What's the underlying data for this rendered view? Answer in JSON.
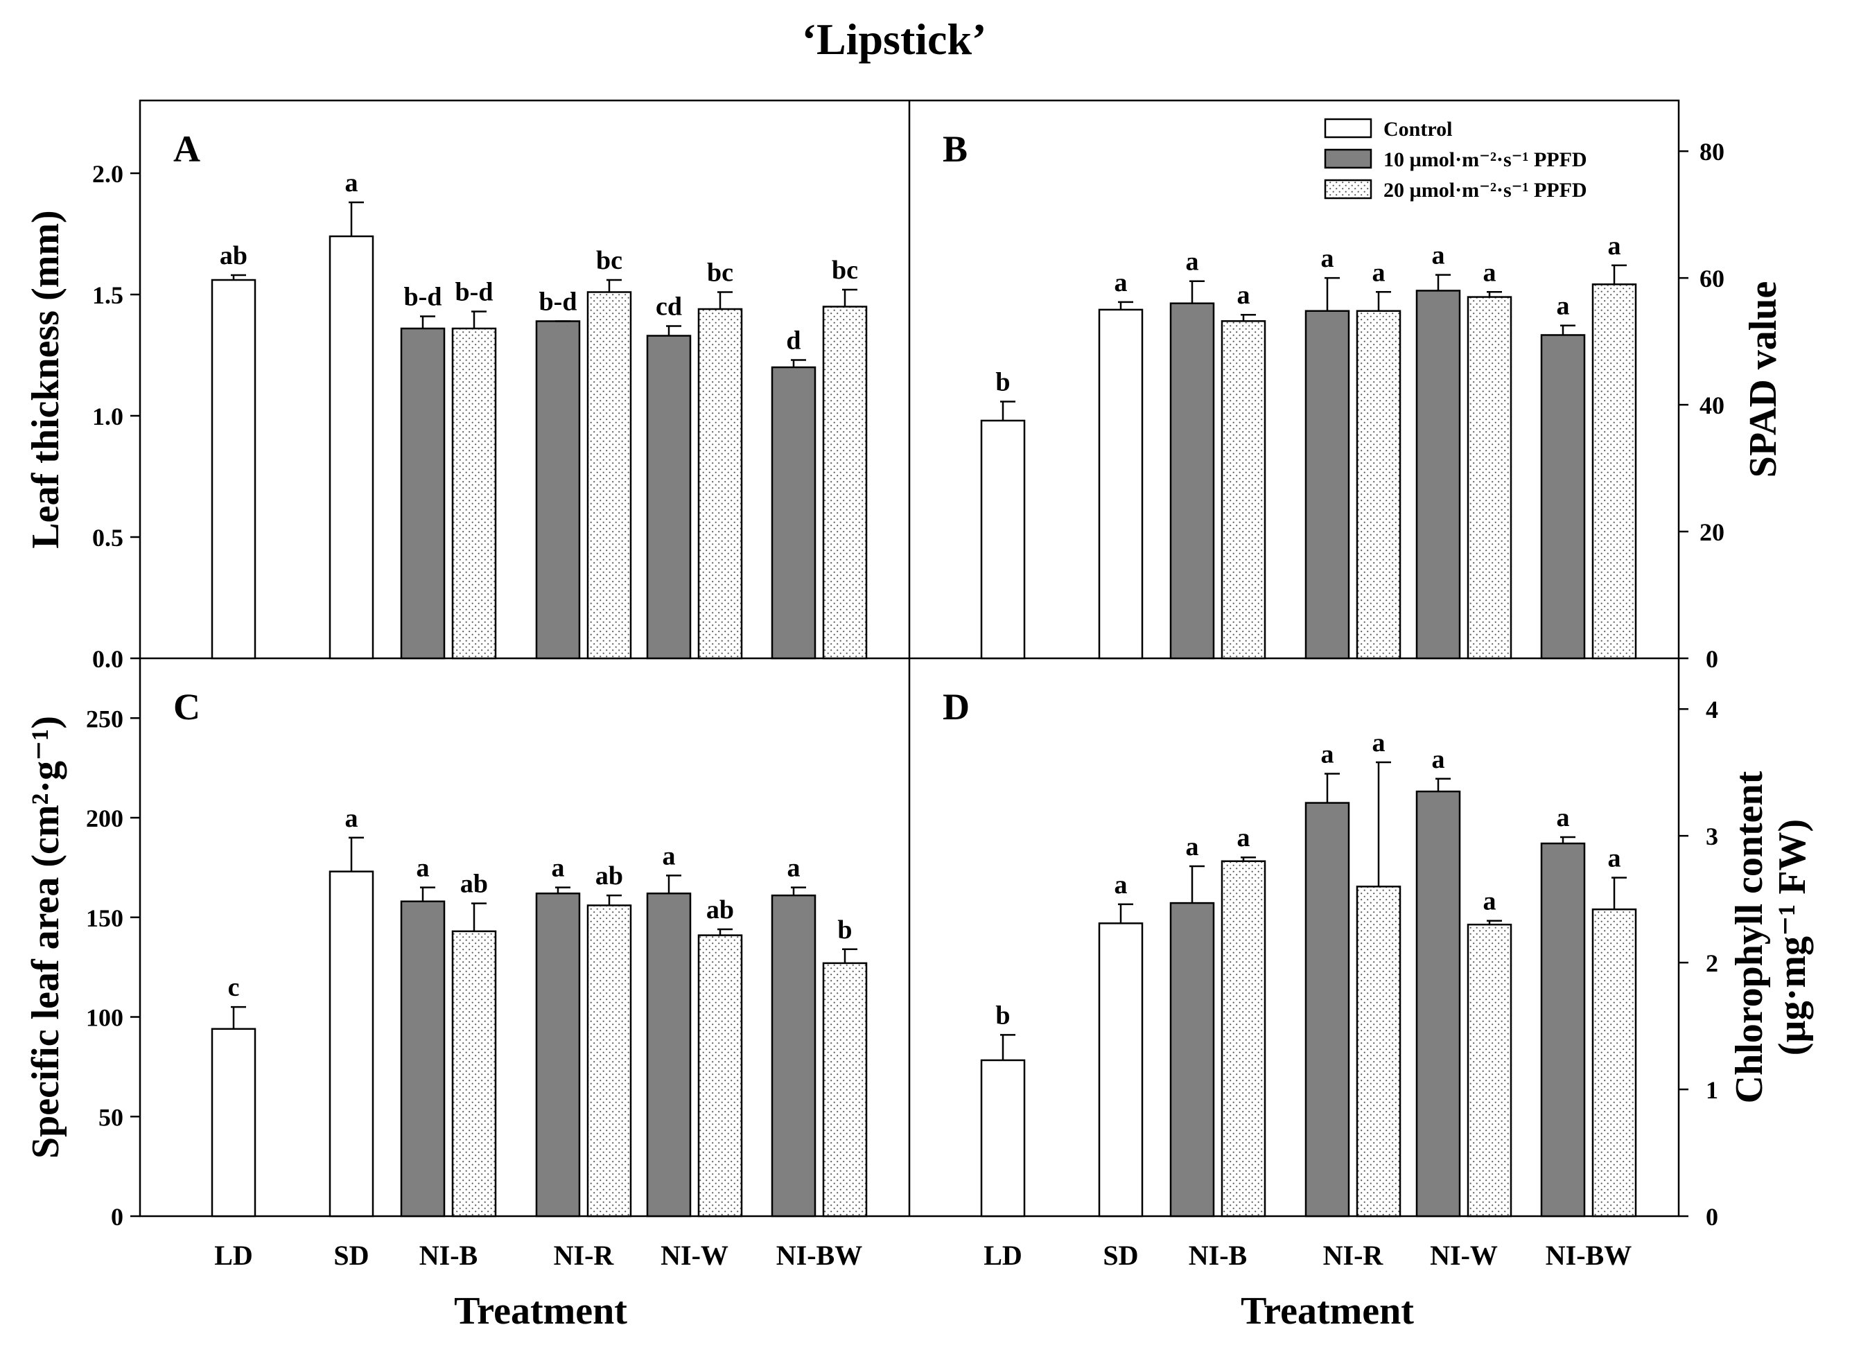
{
  "figure": {
    "title": "‘Lipstick’",
    "xlabel": "Treatment"
  },
  "colors": {
    "control": "#ffffff",
    "ppfd10": "#808080",
    "ppfd20": "#ffffff",
    "dots": "#555555",
    "ink": "#000000"
  },
  "legend": {
    "entries": [
      {
        "key": "control",
        "label": "Control"
      },
      {
        "key": "ppfd10",
        "label": "10 µmol·m⁻²·s⁻¹ PPFD"
      },
      {
        "key": "ppfd20",
        "label": "20 µmol·m⁻²·s⁻¹ PPFD"
      }
    ]
  },
  "chart_data": [
    {
      "panel": "A",
      "type": "bar",
      "ylabel": "Leaf thickness (mm)",
      "ylim": [
        0,
        2.3
      ],
      "yticks": [
        "0.0",
        "0.5",
        "1.0",
        "1.5",
        "2.0"
      ],
      "yaxis_side": "left",
      "categories": [
        "LD",
        "SD",
        "NI-B",
        "NI-R",
        "NI-W",
        "NI-BW"
      ],
      "bars": [
        {
          "category": "LD",
          "series": "control",
          "value": 1.56,
          "error": 0.02,
          "letter": "ab"
        },
        {
          "category": "SD",
          "series": "control",
          "value": 1.74,
          "error": 0.14,
          "letter": "a"
        },
        {
          "category": "NI-B",
          "series": "ppfd10",
          "value": 1.36,
          "error": 0.05,
          "letter": "b-d"
        },
        {
          "category": "NI-B",
          "series": "ppfd20",
          "value": 1.36,
          "error": 0.07,
          "letter": "b-d"
        },
        {
          "category": "NI-R",
          "series": "ppfd10",
          "value": 1.39,
          "error": 0.0,
          "letter": "b-d"
        },
        {
          "category": "NI-R",
          "series": "ppfd20",
          "value": 1.51,
          "error": 0.05,
          "letter": "bc"
        },
        {
          "category": "NI-W",
          "series": "ppfd10",
          "value": 1.33,
          "error": 0.04,
          "letter": "cd"
        },
        {
          "category": "NI-W",
          "series": "ppfd20",
          "value": 1.44,
          "error": 0.07,
          "letter": "bc"
        },
        {
          "category": "NI-BW",
          "series": "ppfd10",
          "value": 1.2,
          "error": 0.03,
          "letter": "d"
        },
        {
          "category": "NI-BW",
          "series": "ppfd20",
          "value": 1.45,
          "error": 0.07,
          "letter": "bc"
        }
      ]
    },
    {
      "panel": "B",
      "type": "bar",
      "ylabel": "SPAD value",
      "ylim": [
        0,
        88
      ],
      "yticks": [
        "0",
        "20",
        "40",
        "60",
        "80"
      ],
      "yaxis_side": "right",
      "categories": [
        "LD",
        "SD",
        "NI-B",
        "NI-R",
        "NI-W",
        "NI-BW"
      ],
      "bars": [
        {
          "category": "LD",
          "series": "control",
          "value": 37.5,
          "error": 3.0,
          "letter": "b"
        },
        {
          "category": "SD",
          "series": "control",
          "value": 55.0,
          "error": 1.2,
          "letter": "a"
        },
        {
          "category": "NI-B",
          "series": "ppfd10",
          "value": 56.0,
          "error": 3.5,
          "letter": "a"
        },
        {
          "category": "NI-B",
          "series": "ppfd20",
          "value": 53.2,
          "error": 1.0,
          "letter": "a"
        },
        {
          "category": "NI-R",
          "series": "ppfd10",
          "value": 54.8,
          "error": 5.2,
          "letter": "a"
        },
        {
          "category": "NI-R",
          "series": "ppfd20",
          "value": 54.8,
          "error": 3.0,
          "letter": "a"
        },
        {
          "category": "NI-W",
          "series": "ppfd10",
          "value": 58.0,
          "error": 2.5,
          "letter": "a"
        },
        {
          "category": "NI-W",
          "series": "ppfd20",
          "value": 57.0,
          "error": 0.8,
          "letter": "a"
        },
        {
          "category": "NI-BW",
          "series": "ppfd10",
          "value": 51.0,
          "error": 1.5,
          "letter": "a"
        },
        {
          "category": "NI-BW",
          "series": "ppfd20",
          "value": 59.0,
          "error": 3.0,
          "letter": "a"
        }
      ]
    },
    {
      "panel": "C",
      "type": "bar",
      "ylabel": "Specific leaf area (cm²·g⁻¹)",
      "ylim": [
        0,
        280
      ],
      "yticks": [
        "0",
        "50",
        "100",
        "150",
        "200",
        "250"
      ],
      "yaxis_side": "left",
      "categories": [
        "LD",
        "SD",
        "NI-B",
        "NI-R",
        "NI-W",
        "NI-BW"
      ],
      "bars": [
        {
          "category": "LD",
          "series": "control",
          "value": 94,
          "error": 11,
          "letter": "c"
        },
        {
          "category": "SD",
          "series": "control",
          "value": 173,
          "error": 17,
          "letter": "a"
        },
        {
          "category": "NI-B",
          "series": "ppfd10",
          "value": 158,
          "error": 7,
          "letter": "a"
        },
        {
          "category": "NI-B",
          "series": "ppfd20",
          "value": 143,
          "error": 14,
          "letter": "ab"
        },
        {
          "category": "NI-R",
          "series": "ppfd10",
          "value": 162,
          "error": 3,
          "letter": "a"
        },
        {
          "category": "NI-R",
          "series": "ppfd20",
          "value": 156,
          "error": 5,
          "letter": "ab"
        },
        {
          "category": "NI-W",
          "series": "ppfd10",
          "value": 162,
          "error": 9,
          "letter": "a"
        },
        {
          "category": "NI-W",
          "series": "ppfd20",
          "value": 141,
          "error": 3,
          "letter": "ab"
        },
        {
          "category": "NI-BW",
          "series": "ppfd10",
          "value": 161,
          "error": 4,
          "letter": "a"
        },
        {
          "category": "NI-BW",
          "series": "ppfd20",
          "value": 127,
          "error": 7,
          "letter": "b"
        }
      ]
    },
    {
      "panel": "D",
      "type": "bar",
      "ylabel_lines": [
        "Chlorophyll content",
        "(µg·mg⁻¹ FW)"
      ],
      "ylim": [
        0,
        4.4
      ],
      "yticks": [
        "0",
        "1",
        "2",
        "3",
        "4"
      ],
      "yaxis_side": "right",
      "categories": [
        "LD",
        "SD",
        "NI-B",
        "NI-R",
        "NI-W",
        "NI-BW"
      ],
      "bars": [
        {
          "category": "LD",
          "series": "control",
          "value": 1.23,
          "error": 0.2,
          "letter": "b"
        },
        {
          "category": "SD",
          "series": "control",
          "value": 2.31,
          "error": 0.15,
          "letter": "a"
        },
        {
          "category": "NI-B",
          "series": "ppfd10",
          "value": 2.47,
          "error": 0.29,
          "letter": "a"
        },
        {
          "category": "NI-B",
          "series": "ppfd20",
          "value": 2.8,
          "error": 0.03,
          "letter": "a"
        },
        {
          "category": "NI-R",
          "series": "ppfd10",
          "value": 3.26,
          "error": 0.23,
          "letter": "a"
        },
        {
          "category": "NI-R",
          "series": "ppfd20",
          "value": 2.6,
          "error": 0.98,
          "letter": "a"
        },
        {
          "category": "NI-W",
          "series": "ppfd10",
          "value": 3.35,
          "error": 0.1,
          "letter": "a"
        },
        {
          "category": "NI-W",
          "series": "ppfd20",
          "value": 2.3,
          "error": 0.03,
          "letter": "a"
        },
        {
          "category": "NI-BW",
          "series": "ppfd10",
          "value": 2.94,
          "error": 0.05,
          "letter": "a"
        },
        {
          "category": "NI-BW",
          "series": "ppfd20",
          "value": 2.42,
          "error": 0.25,
          "letter": "a"
        }
      ]
    }
  ]
}
